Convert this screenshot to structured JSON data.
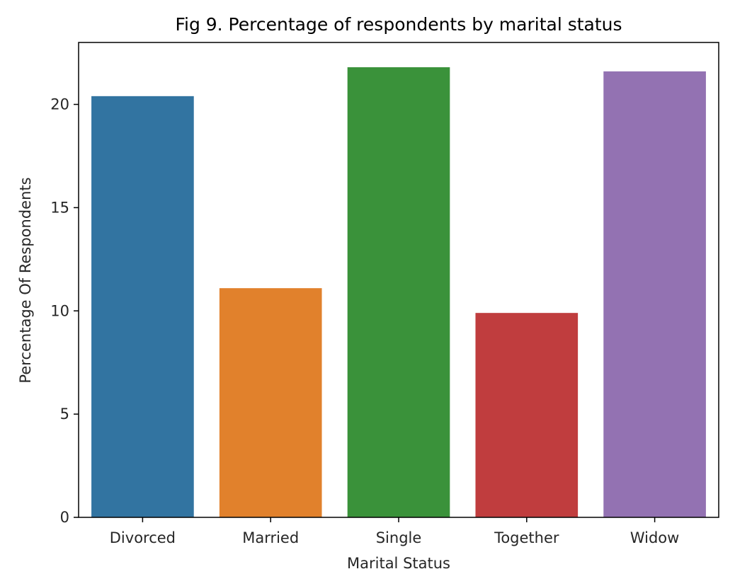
{
  "chart_data": {
    "type": "bar",
    "title": "Fig 9. Percentage of respondents by marital status",
    "xlabel": "Marital Status",
    "ylabel": "Percentage Of Respondents",
    "categories": [
      "Divorced",
      "Married",
      "Single",
      "Together",
      "Widow"
    ],
    "values": [
      20.4,
      11.1,
      21.8,
      9.9,
      21.6
    ],
    "colors": [
      "#3274a1",
      "#e1812c",
      "#3a923a",
      "#c03d3e",
      "#9372b2"
    ],
    "ylim": [
      0,
      23
    ],
    "yticks": [
      0,
      5,
      10,
      15,
      20
    ],
    "grid": false,
    "legend": "none"
  }
}
